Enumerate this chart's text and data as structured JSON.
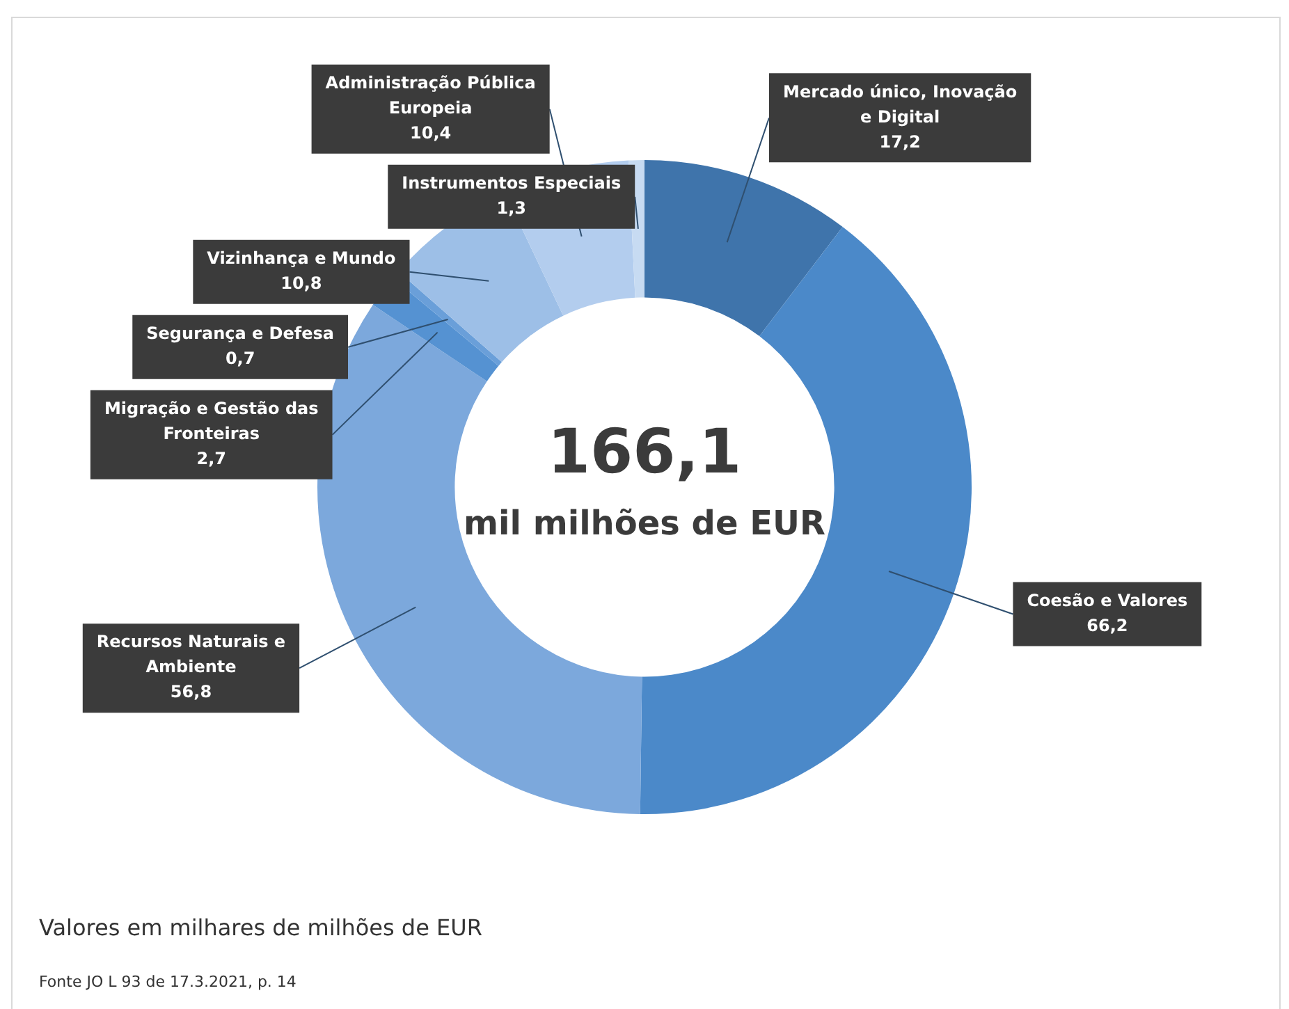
{
  "chart_data": {
    "type": "donut",
    "categories": [
      "Mercado único, Inovação e Digital",
      "Coesão e Valores",
      "Recursos Naturais e Ambiente",
      "Migração e Gestão das Fronteiras",
      "Segurança e Defesa",
      "Vizinhança e Mundo",
      "Administração Pública Europeia",
      "Instrumentos Especiais"
    ],
    "values": [
      17.2,
      66.2,
      56.8,
      2.7,
      0.7,
      10.8,
      10.4,
      1.3
    ],
    "colors": [
      "#3f74ab",
      "#4b89c9",
      "#7ca8dc",
      "#5592d2",
      "#6a9fd9",
      "#9dbfe7",
      "#b3cdee",
      "#c7dbf2"
    ],
    "value_labels": [
      "17,2",
      "66,2",
      "56,8",
      "2,7",
      "0,7",
      "10,8",
      "10,4",
      "1,3"
    ],
    "legend": false,
    "annotations": [
      "166,1",
      "mil milhões de EUR",
      "Valores em milhares de milhões de EUR",
      "Fonte JO L 93 de 17.3.2021, p. 14"
    ]
  }
}
